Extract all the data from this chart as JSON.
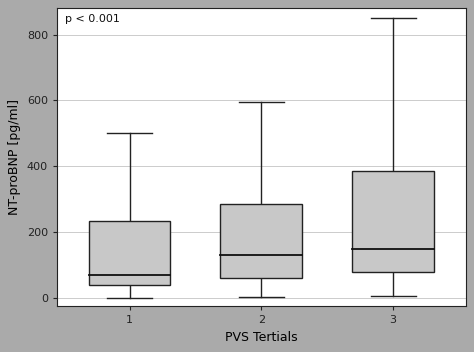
{
  "boxes": [
    {
      "label": "1",
      "whisker_low": 0,
      "q1": 40,
      "median": 70,
      "q3": 235,
      "whisker_high": 500
    },
    {
      "label": "2",
      "whisker_low": 2,
      "q1": 60,
      "median": 130,
      "q3": 285,
      "whisker_high": 595
    },
    {
      "label": "3",
      "whisker_low": 5,
      "q1": 80,
      "median": 150,
      "q3": 385,
      "whisker_high": 850
    }
  ],
  "xlabel": "PVS Tertials",
  "ylabel": "NT-proBNP [pg/ml]",
  "annotation": "p < 0.001",
  "ylim": [
    -25,
    880
  ],
  "yticks": [
    0,
    200,
    400,
    600,
    800
  ],
  "box_color": "#c8c8c8",
  "box_edge_color": "#222222",
  "median_color": "#111111",
  "whisker_color": "#222222",
  "cap_color": "#222222",
  "background_plot": "#ffffff",
  "background_fig": "#aaaaaa",
  "box_width": 0.62,
  "linewidth": 1.0,
  "annotation_fontsize": 8,
  "axis_fontsize": 9,
  "tick_fontsize": 8
}
